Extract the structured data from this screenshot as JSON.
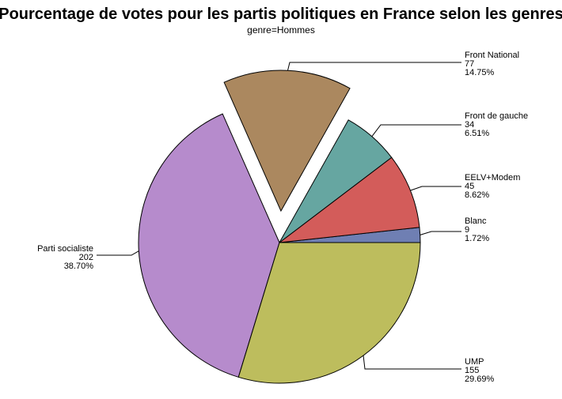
{
  "chart_data": {
    "type": "pie",
    "title": "Pourcentage de votes pour les partis politiques en France selon les genres",
    "subtitle": "genre=Hommes",
    "slices": [
      {
        "label": "Blanc",
        "value": 9,
        "percent": "1.72%",
        "color": "#6f7fb3",
        "exploded": false
      },
      {
        "label": "EELV+Modem",
        "value": 45,
        "percent": "8.62%",
        "color": "#d35c5a",
        "exploded": false
      },
      {
        "label": "Front de gauche",
        "value": 34,
        "percent": "6.51%",
        "color": "#66a6a1",
        "exploded": false
      },
      {
        "label": "Front National",
        "value": 77,
        "percent": "14.75%",
        "color": "#ab885f",
        "exploded": true
      },
      {
        "label": "Parti socialiste",
        "value": 202,
        "percent": "38.70%",
        "color": "#b68bcc",
        "exploded": false
      },
      {
        "label": "UMP",
        "value": 155,
        "percent": "29.69%",
        "color": "#bdbd5d",
        "exploded": false
      }
    ]
  }
}
